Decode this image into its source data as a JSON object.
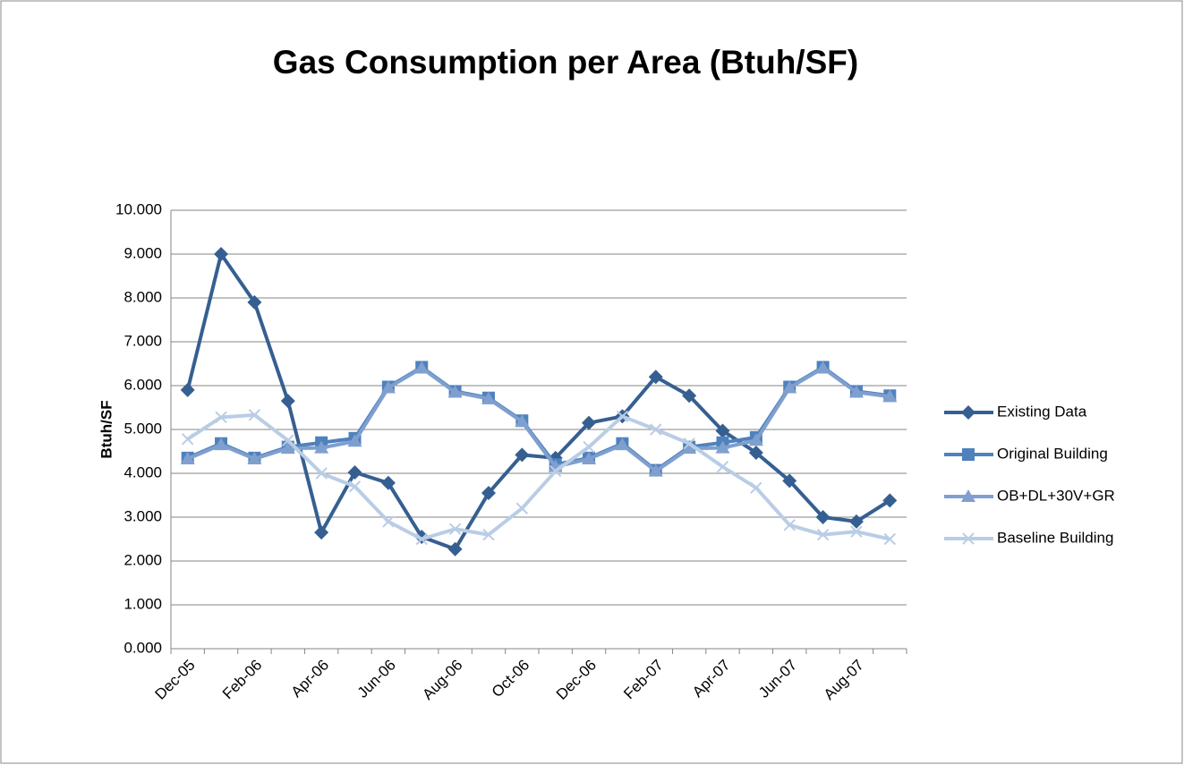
{
  "chart_data": {
    "type": "line",
    "title": "Gas Consumption per Area (Btuh/SF)",
    "y_label": "Btuh/SF",
    "categories": [
      "Dec-05",
      null,
      "Feb-06",
      null,
      "Apr-06",
      null,
      "Jun-06",
      null,
      "Aug-06",
      null,
      "Oct-06",
      null,
      "Dec-06",
      null,
      "Feb-07",
      null,
      "Apr-07",
      null,
      "Jun-07",
      null,
      "Aug-07",
      null
    ],
    "series": [
      {
        "name": "Existing Data",
        "color": "#365f91",
        "marker": "diamond",
        "values": [
          5.9,
          9.0,
          7.9,
          5.65,
          2.65,
          4.02,
          3.78,
          2.55,
          2.27,
          3.55,
          4.42,
          4.35,
          5.15,
          5.3,
          6.2,
          5.77,
          4.97,
          4.47,
          3.83,
          3.0,
          2.9,
          3.38
        ]
      },
      {
        "name": "Original Building",
        "color": "#4f81bd",
        "marker": "square",
        "values": [
          4.35,
          4.68,
          4.35,
          4.6,
          4.7,
          4.8,
          5.97,
          6.42,
          5.87,
          5.72,
          5.2,
          4.2,
          4.35,
          4.68,
          4.07,
          4.6,
          4.7,
          4.82,
          5.97,
          6.42,
          5.87,
          5.77
        ]
      },
      {
        "name": "OB+DL+30V+GR",
        "color": "#7f9fcf",
        "marker": "triangle",
        "values": [
          4.33,
          4.65,
          4.33,
          4.57,
          4.58,
          4.73,
          5.95,
          6.4,
          5.85,
          5.7,
          5.18,
          4.15,
          4.33,
          4.65,
          4.05,
          4.57,
          4.58,
          4.75,
          5.95,
          6.4,
          5.85,
          5.75
        ]
      },
      {
        "name": "Baseline Building",
        "color": "#b9cde5",
        "marker": "x",
        "values": [
          4.78,
          5.28,
          5.33,
          4.75,
          4.0,
          3.7,
          2.9,
          2.5,
          2.73,
          2.6,
          3.2,
          4.05,
          4.6,
          5.3,
          5.0,
          4.68,
          4.15,
          3.67,
          2.82,
          2.6,
          2.67,
          2.5
        ]
      }
    ],
    "ylim": [
      0,
      10
    ],
    "yticks": [
      {
        "value": 0,
        "label": "0.000"
      },
      {
        "value": 1,
        "label": "1.000"
      },
      {
        "value": 2,
        "label": "2.000"
      },
      {
        "value": 3,
        "label": "3.000"
      },
      {
        "value": 4,
        "label": "4.000"
      },
      {
        "value": 5,
        "label": "5.000"
      },
      {
        "value": 6,
        "label": "6.000"
      },
      {
        "value": 7,
        "label": "7.000"
      },
      {
        "value": 8,
        "label": "8.000"
      },
      {
        "value": 9,
        "label": "9.000"
      },
      {
        "value": 10,
        "label": "10.000"
      }
    ],
    "grid": true,
    "legend": "right"
  }
}
